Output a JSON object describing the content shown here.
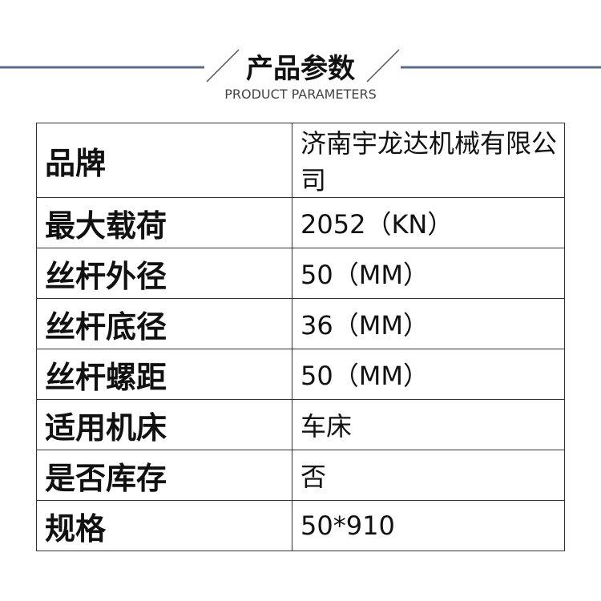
{
  "header": {
    "title": "产品参数",
    "subtitle": "PRODUCT PARAMETERS"
  },
  "table": {
    "rows": [
      [
        "品牌",
        "济南宇龙达机械有限公司"
      ],
      [
        "最大载荷",
        "2052（KN）"
      ],
      [
        "丝杆外径",
        "50（MM）"
      ],
      [
        "丝杆底径",
        "36（MM）"
      ],
      [
        "丝杆螺距",
        "50（MM）"
      ],
      [
        "适用机床",
        "车床"
      ],
      [
        "是否库存",
        "否"
      ],
      [
        "规格",
        "50*910"
      ]
    ]
  }
}
